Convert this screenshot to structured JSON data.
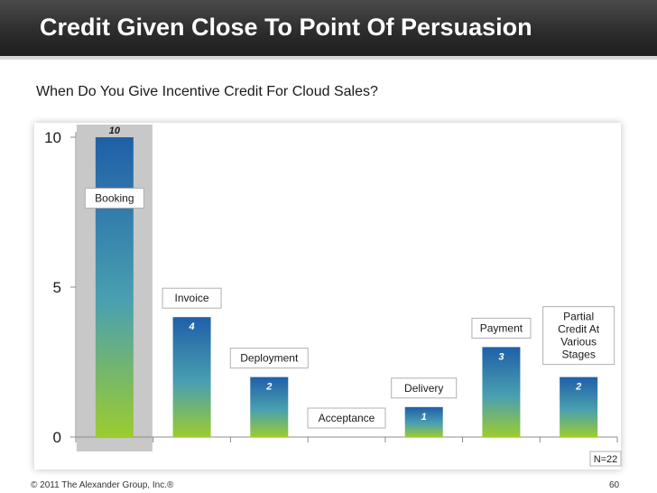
{
  "title": "Credit Given Close To Point Of Persuasion",
  "subtitle": "When Do You Give Incentive Credit For Cloud Sales?",
  "footer": "© 2011 The Alexander Group, Inc.®",
  "page_number": "60",
  "n_label": "N=22",
  "colors": {
    "bar_top": "#1f5fa8",
    "bar_mid": "#4aa0b0",
    "bar_bottom": "#9ccc2e",
    "highlight": "#c8c8c8"
  },
  "chart_data": {
    "type": "bar",
    "categories": [
      "Booking",
      "Invoice",
      "Deployment",
      "Acceptance",
      "Delivery",
      "Payment",
      "Partial Credit At Various Stages"
    ],
    "values": [
      10,
      4,
      2,
      0,
      1,
      3,
      2
    ],
    "value_labels": [
      "10",
      "4",
      "2",
      "",
      "1",
      "3",
      "2"
    ],
    "category_label_lines": [
      [
        "Booking"
      ],
      [
        "Invoice"
      ],
      [
        "Deployment"
      ],
      [
        "Acceptance"
      ],
      [
        "Delivery"
      ],
      [
        "Payment"
      ],
      [
        "Partial",
        "Credit At",
        "Various",
        "Stages"
      ]
    ],
    "y_ticks": [
      "0",
      "5",
      "10"
    ],
    "y_tick_values": [
      0,
      5,
      10
    ],
    "ylim": [
      0,
      10
    ],
    "highlighted_category": "Booking",
    "grid": false
  }
}
